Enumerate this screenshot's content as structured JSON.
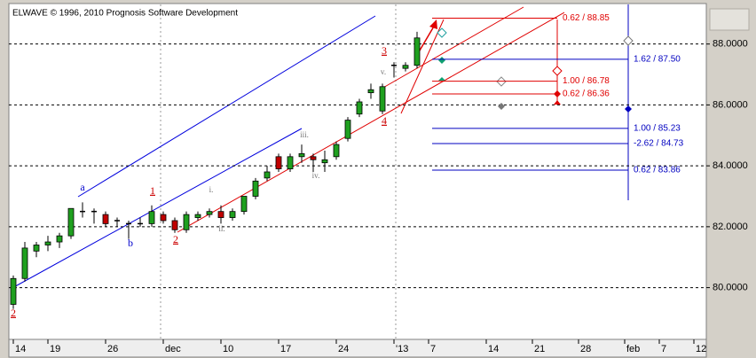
{
  "chart_data": {
    "type": "candlestick",
    "title": "ELWAVE © 1996, 2010 Prognosis Software Development",
    "categories": [
      "14",
      null,
      null,
      "19",
      null,
      null,
      null,
      null,
      "26",
      null,
      null,
      null,
      null,
      "dec",
      null,
      null,
      null,
      null,
      "10",
      null,
      null,
      null,
      null,
      "17",
      null,
      null,
      null,
      null,
      "24",
      null,
      null,
      null,
      null,
      "'13",
      null,
      null,
      "7",
      null,
      null,
      null,
      null,
      "14",
      null,
      null,
      null,
      "21",
      null,
      null,
      null,
      "28",
      null,
      null,
      null,
      "feb",
      null,
      null,
      "7",
      null,
      null,
      "12"
    ],
    "open": [
      79.45,
      80.3,
      81.2,
      81.4,
      81.5,
      81.7,
      82.5,
      82.5,
      82.4,
      82.2,
      82.1,
      82.1,
      82.1,
      82.4,
      82.2,
      81.9,
      82.3,
      82.4,
      82.5,
      82.3,
      82.5,
      83.0,
      83.6,
      84.3,
      83.9,
      84.3,
      84.3,
      84.1,
      84.3,
      84.9,
      85.7,
      86.4,
      85.8,
      87.3,
      87.2,
      87.3,
      null,
      null,
      null,
      null,
      null,
      null,
      null,
      null,
      null,
      null,
      null,
      null,
      null,
      null,
      null,
      null,
      null,
      null,
      null,
      null,
      null,
      null,
      null,
      null
    ],
    "high": [
      80.4,
      81.5,
      81.5,
      81.7,
      81.8,
      82.6,
      82.8,
      82.6,
      82.5,
      82.3,
      82.2,
      82.3,
      82.7,
      82.5,
      82.3,
      82.5,
      82.5,
      82.6,
      82.7,
      82.6,
      83.0,
      83.6,
      84.0,
      84.4,
      84.4,
      84.7,
      84.4,
      84.5,
      84.8,
      85.6,
      86.2,
      86.7,
      86.7,
      87.4,
      87.4,
      88.4,
      null,
      null,
      null,
      null,
      null,
      null,
      null,
      null,
      null,
      null,
      null,
      null,
      null,
      null,
      null,
      null,
      null,
      null,
      null,
      null,
      null,
      null,
      null,
      null
    ],
    "low": [
      79.3,
      80.2,
      81.0,
      81.2,
      81.3,
      81.6,
      82.3,
      82.1,
      82.0,
      82.0,
      81.6,
      82.0,
      82.0,
      82.1,
      81.8,
      81.8,
      82.2,
      82.3,
      82.1,
      82.2,
      82.4,
      82.9,
      83.5,
      83.8,
      83.8,
      84.1,
      83.8,
      83.8,
      84.2,
      84.8,
      85.6,
      86.2,
      85.7,
      86.9,
      87.1,
      87.2,
      null,
      null,
      null,
      null,
      null,
      null,
      null,
      null,
      null,
      null,
      null,
      null,
      null,
      null,
      null,
      null,
      null,
      null,
      null,
      null,
      null,
      null,
      null,
      null
    ],
    "close": [
      80.3,
      81.3,
      81.4,
      81.5,
      81.7,
      82.6,
      82.5,
      82.5,
      82.1,
      82.2,
      82.1,
      82.1,
      82.5,
      82.2,
      81.9,
      82.4,
      82.4,
      82.5,
      82.3,
      82.5,
      83.0,
      83.5,
      83.8,
      83.9,
      84.3,
      84.4,
      84.2,
      84.2,
      84.7,
      85.5,
      86.1,
      86.5,
      86.6,
      87.3,
      87.3,
      88.2,
      null,
      null,
      null,
      null,
      null,
      null,
      null,
      null,
      null,
      null,
      null,
      null,
      null,
      null,
      null,
      null,
      null,
      null,
      null,
      null,
      null,
      null,
      null,
      null
    ],
    "up_color": "#1fa01f",
    "down_color": "#c00000",
    "ylim": [
      78.3,
      89.3
    ],
    "yticks": [
      {
        "value": 80,
        "label": "80.0000"
      },
      {
        "value": 82,
        "label": "82.0000"
      },
      {
        "value": 84,
        "label": "84.0000"
      },
      {
        "value": 86,
        "label": "86.0000"
      },
      {
        "value": 88,
        "label": "88.0000"
      }
    ],
    "grid": true,
    "levels": [
      {
        "label": "0.62 / 88.85",
        "value": 88.85,
        "color": "#e00000"
      },
      {
        "label": "1.62 / 87.50",
        "value": 87.5,
        "color": "#0000c0"
      },
      {
        "label": "1.00 / 86.78",
        "value": 86.78,
        "color": "#e00000"
      },
      {
        "label": "0.62 / 86.36",
        "value": 86.36,
        "color": "#e00000"
      },
      {
        "label": "1.00 / 85.23",
        "value": 85.23,
        "color": "#0000c0"
      },
      {
        "label": "-2.62 / 84.73",
        "value": 84.73,
        "color": "#0000c0"
      },
      {
        "label": "0.62 / 83.86",
        "value": 83.86,
        "color": "#0000c0"
      }
    ],
    "annotations": [
      {
        "text": "a",
        "color": "#0000cc"
      },
      {
        "text": "b",
        "color": "#0000cc"
      },
      {
        "text": "1",
        "color": "#cc0000"
      },
      {
        "text": "2",
        "color": "#cc0000"
      },
      {
        "text": "2",
        "color": "#cc0000"
      },
      {
        "text": "i.",
        "color": "#777777"
      },
      {
        "text": "ii.",
        "color": "#777777"
      },
      {
        "text": "iii.",
        "color": "#777777"
      },
      {
        "text": "iv.",
        "color": "#777777"
      },
      {
        "text": "v.",
        "color": "#777777"
      },
      {
        "text": "3",
        "color": "#cc0000"
      },
      {
        "text": "4",
        "color": "#cc0000"
      }
    ]
  }
}
